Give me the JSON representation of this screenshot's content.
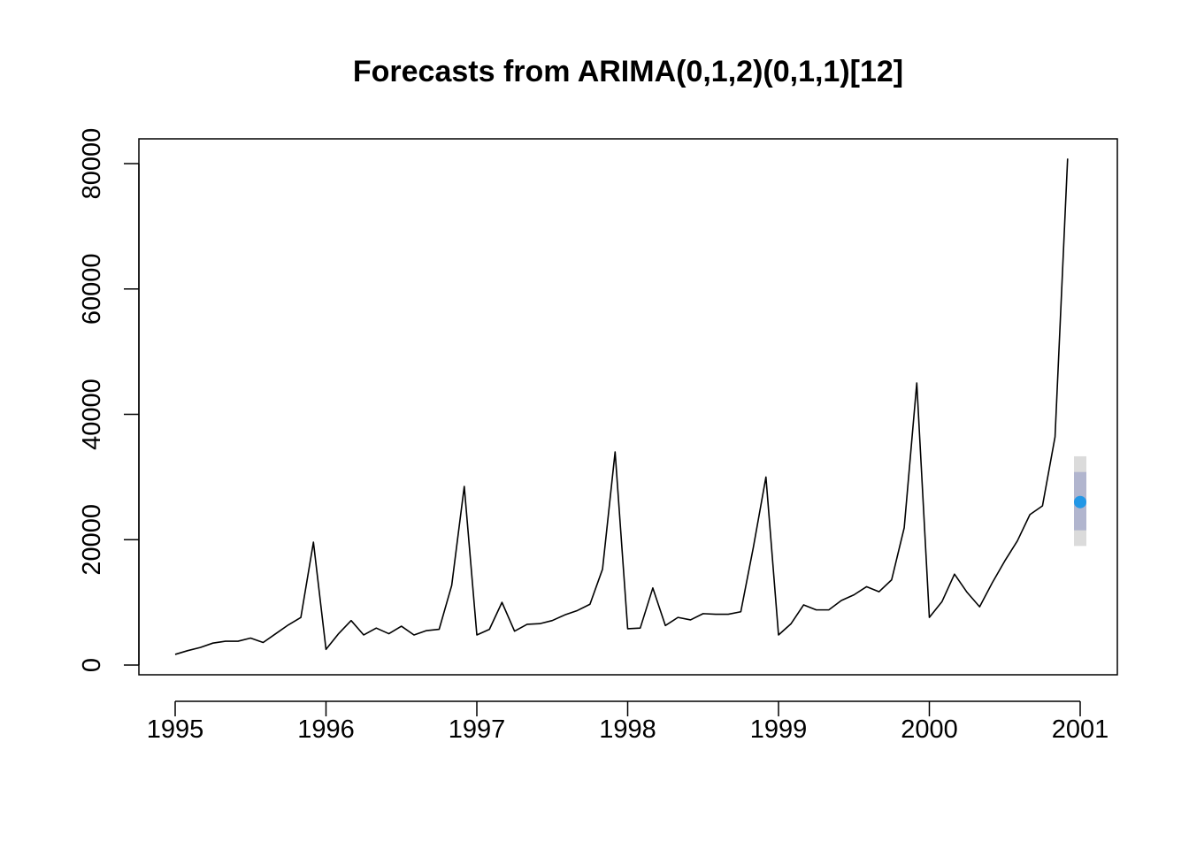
{
  "chart_data": {
    "type": "line",
    "title": "Forecasts from ARIMA(0,1,2)(0,1,1)[12]",
    "xlabel": "",
    "ylabel": "",
    "xlim": [
      1995,
      2001
    ],
    "ylim": [
      0,
      80000
    ],
    "x_ticks": [
      "1995",
      "1996",
      "1997",
      "1998",
      "1999",
      "2000",
      "2001"
    ],
    "y_ticks": [
      "0",
      "20000",
      "40000",
      "60000",
      "80000"
    ],
    "grid": false,
    "legend": "none",
    "series_color": "#000000",
    "forecast_color": "#2297e6",
    "interval_80_color": "#b1b5ce",
    "interval_95_color": "#dbdbdb",
    "start_year": 1995,
    "frequency": 12,
    "observed": [
      1700,
      2300,
      2800,
      3500,
      3800,
      3800,
      4300,
      3600,
      5000,
      6400,
      7600,
      19600,
      2500,
      5000,
      7100,
      4800,
      5900,
      5000,
      6200,
      4800,
      5500,
      5700,
      12700,
      28500,
      4800,
      5700,
      10000,
      5400,
      6500,
      6600,
      7100,
      8000,
      8700,
      9700,
      15300,
      34000,
      5800,
      5900,
      12300,
      6300,
      7600,
      7200,
      8200,
      8100,
      8100,
      8500,
      18800,
      30000,
      4800,
      6600,
      9600,
      8800,
      8800,
      10300,
      11200,
      12500,
      11700,
      13600,
      21900,
      45000,
      7600,
      10100,
      14500,
      11600,
      9300,
      13100,
      16600,
      19800,
      24000,
      25400,
      36400,
      80800
    ],
    "forecast": {
      "x": "2001-01",
      "mean": 26000,
      "lo80": 21500,
      "hi80": 30800,
      "lo95": 19000,
      "hi95": 33300
    }
  }
}
